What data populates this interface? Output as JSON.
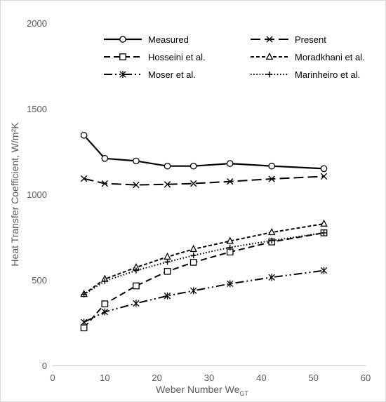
{
  "chart_data": {
    "type": "line",
    "title": "",
    "xlabel": "Weber Number We",
    "xlabel_subscript": "GT",
    "ylabel": "Heat Transfer Coefficient, W/m²K",
    "xlim": [
      0,
      60
    ],
    "ylim": [
      0,
      2000
    ],
    "x_ticks": [
      0,
      10,
      20,
      30,
      40,
      50,
      60
    ],
    "y_ticks": [
      0,
      500,
      1000,
      1500,
      2000
    ],
    "grid": false,
    "legend_position": "top, inside plot, two columns",
    "series": [
      {
        "name": "Measured",
        "marker": "circle",
        "dash": "solid",
        "color": "#000000",
        "x": [
          6,
          10,
          16,
          22,
          27,
          34,
          42,
          52
        ],
        "y": [
          1345,
          1210,
          1195,
          1165,
          1165,
          1180,
          1165,
          1150
        ]
      },
      {
        "name": "Present",
        "marker": "x",
        "dash": "long-dash",
        "color": "#000000",
        "x": [
          6,
          10,
          16,
          22,
          27,
          34,
          42,
          52
        ],
        "y": [
          1092,
          1063,
          1055,
          1058,
          1063,
          1075,
          1090,
          1105
        ]
      },
      {
        "name": "Hosseini et al.",
        "marker": "square",
        "dash": "dash",
        "color": "#000000",
        "x": [
          6,
          10,
          16,
          22,
          27,
          34,
          42,
          52
        ],
        "y": [
          220,
          360,
          465,
          550,
          603,
          663,
          722,
          775
        ]
      },
      {
        "name": "Moradkhani et al.",
        "marker": "triangle",
        "dash": "short-dash",
        "color": "#000000",
        "x": [
          6,
          10,
          16,
          22,
          27,
          34,
          42,
          52
        ],
        "y": [
          417,
          505,
          573,
          635,
          680,
          727,
          778,
          828
        ]
      },
      {
        "name": "Moser et al.",
        "marker": "asterisk",
        "dash": "dash-dot-dot",
        "color": "#000000",
        "x": [
          6,
          10,
          16,
          22,
          27,
          34,
          42,
          52
        ],
        "y": [
          253,
          313,
          363,
          407,
          437,
          478,
          515,
          555
        ]
      },
      {
        "name": "Marinheiro et al.",
        "marker": "plus",
        "dash": "dotted",
        "color": "#000000",
        "x": [
          6,
          10,
          16,
          22,
          27,
          34,
          42,
          52
        ],
        "y": [
          415,
          493,
          555,
          605,
          643,
          690,
          730,
          775
        ]
      }
    ]
  }
}
